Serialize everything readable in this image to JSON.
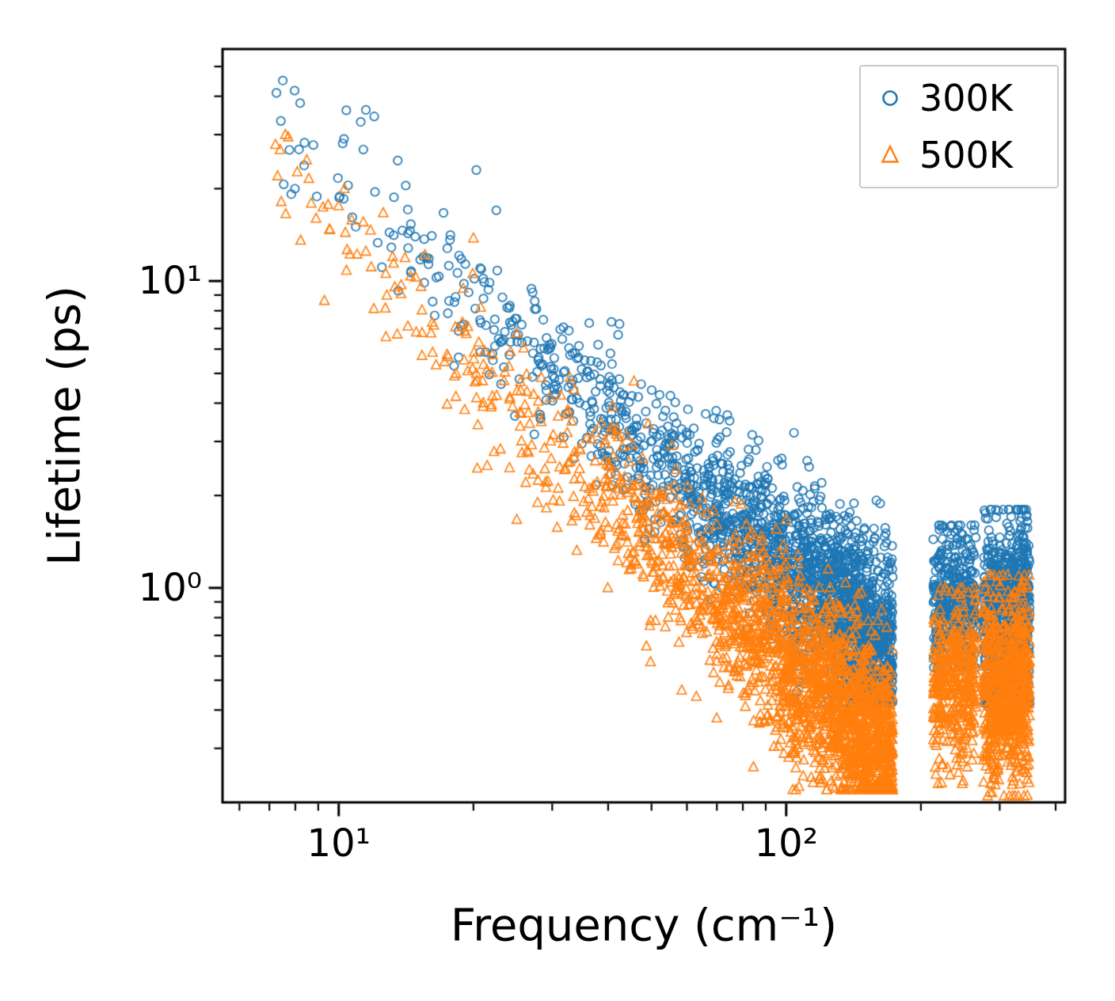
{
  "figure": {
    "background": "#ffffff",
    "frame_color": "#000000"
  },
  "chart_data": {
    "type": "scatter",
    "title": "",
    "xlabel": "Frequency (cm⁻¹)",
    "ylabel": "Lifetime (ps)",
    "x_scale": "log",
    "y_scale": "log",
    "xlim": [
      5.5,
      420
    ],
    "ylim": [
      0.2,
      57
    ],
    "grid": false,
    "x_ticks": [
      {
        "value": 10,
        "label": "10¹"
      },
      {
        "value": 100,
        "label": "10²"
      }
    ],
    "y_ticks": [
      {
        "value": 1,
        "label": "10⁰"
      },
      {
        "value": 10,
        "label": "10¹"
      }
    ],
    "legend": {
      "position": "upper right",
      "entries": [
        {
          "label": "300K",
          "marker": "circle",
          "color": "#1f77b4"
        },
        {
          "label": "500K",
          "marker": "triangle",
          "color": "#ff7f0e"
        }
      ]
    },
    "series": [
      {
        "name": "300K",
        "marker": "circle",
        "color": "#1f77b4",
        "n": 3400,
        "seed": 1337,
        "trend": {
          "intercept": 2.505,
          "slope": 1.204,
          "sigma": 0.1,
          "sigma_growth": 0.05,
          "lowfreq_boost": 0.1,
          "clamp_ps": [
            0.42,
            48
          ]
        },
        "bands": [
          {
            "type": "acoustic",
            "range": [
              7,
              173
            ],
            "weight": 0.66
          },
          {
            "type": "optical",
            "range": [
              213,
              266
            ],
            "weight": 0.12,
            "center_log": -0.045,
            "sigma": 0.12,
            "clamp_ps": [
              0.55,
              1.6
            ]
          },
          {
            "type": "optical",
            "range": [
              276,
              350
            ],
            "weight": 0.22,
            "center_log": -0.1,
            "sigma": 0.16,
            "clamp_ps": [
              0.42,
              1.8
            ],
            "right_boost": 0.08
          }
        ],
        "dips": [
          {
            "center": 50,
            "width": 4,
            "depth": 0.3
          },
          {
            "center": 70,
            "width": 4,
            "depth": 0.22
          },
          {
            "center": 105,
            "width": 7,
            "depth": 0.26
          },
          {
            "center": 160,
            "width": 12,
            "depth": 0.3
          }
        ],
        "highlight_points": [
          [
            7.5,
            45
          ],
          [
            8.2,
            38
          ],
          [
            10.4,
            36
          ],
          [
            11.2,
            33
          ],
          [
            20.3,
            23
          ],
          [
            22.5,
            17
          ],
          [
            38,
            6.2
          ],
          [
            120,
            2.2
          ]
        ]
      },
      {
        "name": "500K",
        "marker": "triangle",
        "color": "#ff7f0e",
        "n": 3400,
        "seed": 2024,
        "trend": {
          "intercept": 2.45,
          "slope": 1.336,
          "sigma": 0.11,
          "sigma_growth": 0.05,
          "lowfreq_boost": 0.1,
          "clamp_ps": [
            0.22,
            32
          ]
        },
        "bands": [
          {
            "type": "acoustic",
            "range": [
              7,
              173
            ],
            "weight": 0.66
          },
          {
            "type": "optical",
            "range": [
              213,
              266
            ],
            "weight": 0.12,
            "center_log": -0.3,
            "sigma": 0.14,
            "clamp_ps": [
              0.23,
              1.0
            ]
          },
          {
            "type": "optical",
            "range": [
              276,
              350
            ],
            "weight": 0.22,
            "center_log": -0.33,
            "sigma": 0.16,
            "clamp_ps": [
              0.21,
              1.1
            ],
            "right_boost": 0.06
          }
        ],
        "dips": [
          {
            "center": 50,
            "width": 4,
            "depth": 0.33
          },
          {
            "center": 70,
            "width": 4,
            "depth": 0.24
          },
          {
            "center": 105,
            "width": 7,
            "depth": 0.28
          },
          {
            "center": 160,
            "width": 12,
            "depth": 0.3
          }
        ],
        "highlight_points": [
          [
            7.3,
            22
          ],
          [
            7.6,
            30
          ],
          [
            8.9,
            16
          ],
          [
            10.3,
            20
          ],
          [
            11.5,
            12.5
          ],
          [
            13.2,
            12
          ],
          [
            20,
            13.8
          ],
          [
            21,
            3.9
          ]
        ]
      }
    ]
  }
}
